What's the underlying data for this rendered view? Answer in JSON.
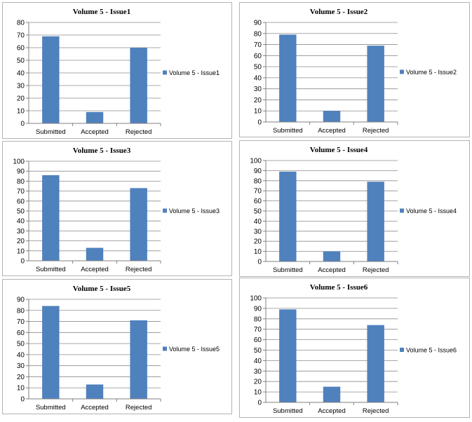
{
  "colors": {
    "bar": "#4F81BD",
    "grid": "#8c8c8c",
    "axis": "#808080"
  },
  "chart_data": [
    {
      "type": "bar",
      "title": "Volume 5 - Issue1",
      "legend": "Volume 5 - Issue1",
      "legend_position": "right",
      "categories": [
        "Submitted",
        "Accepted",
        "Rejected"
      ],
      "values": [
        69,
        9,
        60
      ],
      "ylim": [
        0,
        80
      ],
      "yticks": [
        0,
        10,
        20,
        30,
        40,
        50,
        60,
        70,
        80
      ],
      "grid": true
    },
    {
      "type": "bar",
      "title": "Volume 5 - Issue2",
      "legend": "Volume 5 - Issue2",
      "legend_position": "right",
      "categories": [
        "Submitted",
        "Accepted",
        "Rejected"
      ],
      "values": [
        79,
        10,
        69
      ],
      "ylim": [
        0,
        90
      ],
      "yticks": [
        0,
        10,
        20,
        30,
        40,
        50,
        60,
        70,
        80,
        90
      ],
      "grid": true
    },
    {
      "type": "bar",
      "title": "Volume 5 - Issue3",
      "legend": "Volume 5 - Issue3",
      "legend_position": "right",
      "categories": [
        "Submitted",
        "Accepted",
        "Rejected"
      ],
      "values": [
        86,
        13,
        73
      ],
      "ylim": [
        0,
        100
      ],
      "yticks": [
        0,
        10,
        20,
        30,
        40,
        50,
        60,
        70,
        80,
        90,
        100
      ],
      "grid": true
    },
    {
      "type": "bar",
      "title": "Volume 5 - Issue4",
      "legend": "Volume 5 - Issue4",
      "legend_position": "right",
      "categories": [
        "Submitted",
        "Accepted",
        "Rejected"
      ],
      "values": [
        89,
        10,
        79
      ],
      "ylim": [
        0,
        100
      ],
      "yticks": [
        0,
        10,
        20,
        30,
        40,
        50,
        60,
        70,
        80,
        90,
        100
      ],
      "grid": true
    },
    {
      "type": "bar",
      "title": "Volume 5 - Issue5",
      "legend": "Volume 5 - Issue5",
      "legend_position": "right",
      "categories": [
        "Submitted",
        "Accepted",
        "Rejected"
      ],
      "values": [
        84,
        13,
        71
      ],
      "ylim": [
        0,
        90
      ],
      "yticks": [
        0,
        10,
        20,
        30,
        40,
        50,
        60,
        70,
        80,
        90
      ],
      "grid": true
    },
    {
      "type": "bar",
      "title": "Volume 5 - Issue6",
      "legend": "Volume 5 - Issue6",
      "legend_position": "right",
      "categories": [
        "Submitted",
        "Accepted",
        "Rejected"
      ],
      "values": [
        89,
        15,
        74
      ],
      "ylim": [
        0,
        100
      ],
      "yticks": [
        0,
        10,
        20,
        30,
        40,
        50,
        60,
        70,
        80,
        90,
        100
      ],
      "grid": true
    }
  ]
}
